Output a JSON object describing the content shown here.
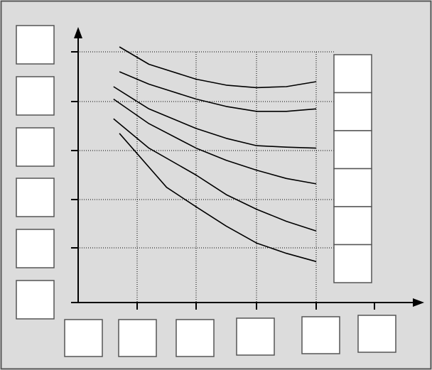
{
  "colors": {
    "background": "#dcdcdc",
    "frame": "#555555",
    "line": "#000000",
    "grid": "#000000",
    "box_fill": "#ffffff"
  },
  "chart_data": {
    "type": "line",
    "grid": "dotted",
    "legend": "right",
    "x_ticks": [
      1,
      2,
      3,
      4,
      5
    ],
    "y_ticks": [
      1,
      2,
      3,
      4,
      5
    ],
    "xlim": [
      0,
      5
    ],
    "ylim": [
      0,
      5
    ],
    "series": [
      {
        "values": [
          [
            0.7,
            5.1
          ],
          [
            1.2,
            4.75
          ],
          [
            2.0,
            4.45
          ],
          [
            2.5,
            4.33
          ],
          [
            3.0,
            4.28
          ],
          [
            3.5,
            4.3
          ],
          [
            4.0,
            4.4
          ]
        ]
      },
      {
        "values": [
          [
            0.7,
            4.6
          ],
          [
            1.2,
            4.35
          ],
          [
            2.0,
            4.05
          ],
          [
            2.5,
            3.9
          ],
          [
            3.0,
            3.8
          ],
          [
            3.5,
            3.8
          ],
          [
            4.0,
            3.85
          ]
        ]
      },
      {
        "values": [
          [
            0.6,
            4.3
          ],
          [
            1.2,
            3.85
          ],
          [
            2.0,
            3.45
          ],
          [
            2.5,
            3.25
          ],
          [
            3.0,
            3.1
          ],
          [
            3.5,
            3.07
          ],
          [
            4.0,
            3.05
          ]
        ]
      },
      {
        "values": [
          [
            0.6,
            4.05
          ],
          [
            1.2,
            3.55
          ],
          [
            2.0,
            3.05
          ],
          [
            2.5,
            2.8
          ],
          [
            3.0,
            2.6
          ],
          [
            3.5,
            2.43
          ],
          [
            4.0,
            2.32
          ]
        ]
      },
      {
        "values": [
          [
            0.6,
            3.65
          ],
          [
            1.2,
            3.05
          ],
          [
            2.0,
            2.5
          ],
          [
            2.5,
            2.1
          ],
          [
            3.0,
            1.8
          ],
          [
            3.5,
            1.55
          ],
          [
            4.0,
            1.35
          ]
        ]
      },
      {
        "values": [
          [
            0.7,
            3.35
          ],
          [
            1.5,
            2.25
          ],
          [
            2.0,
            1.85
          ],
          [
            2.5,
            1.45
          ],
          [
            3.0,
            1.1
          ],
          [
            3.5,
            0.9
          ],
          [
            4.0,
            0.75
          ]
        ]
      }
    ]
  },
  "placeholders": {
    "y_labels": [
      "",
      "",
      "",
      "",
      "",
      ""
    ],
    "x_labels": [
      "",
      "",
      "",
      "",
      "",
      ""
    ],
    "legend_items": [
      "",
      "",
      "",
      "",
      "",
      ""
    ]
  }
}
